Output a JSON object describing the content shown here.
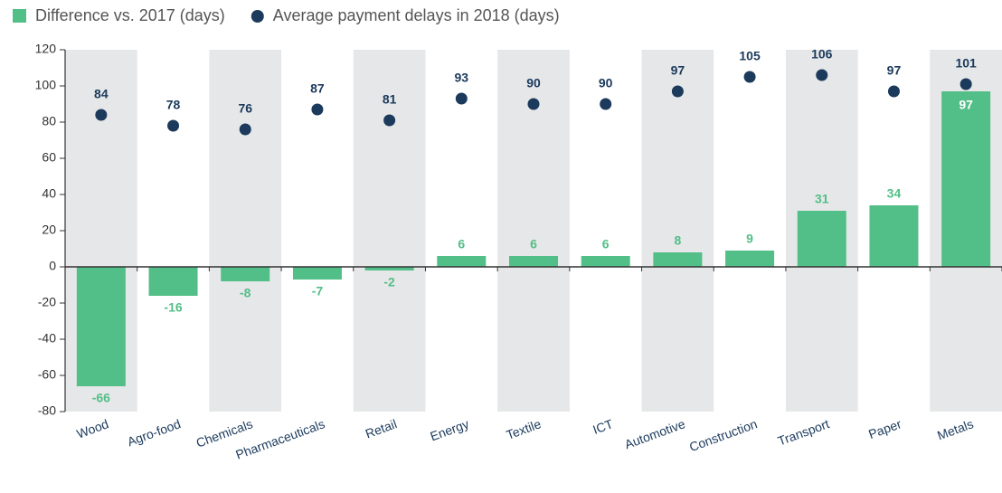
{
  "chart_data": {
    "type": "bar",
    "categories": [
      "Wood",
      "Agro-food",
      "Chemicals",
      "Pharmaceuticals",
      "Retail",
      "Energy",
      "Textile",
      "ICT",
      "Automotive",
      "Construction",
      "Transport",
      "Paper",
      "Metals"
    ],
    "series": [
      {
        "name": "Difference vs. 2017 (days)",
        "type": "bar",
        "color": "#52be88",
        "values": [
          -66,
          -16,
          -8,
          -7,
          -2,
          6,
          6,
          6,
          8,
          9,
          31,
          34,
          97
        ]
      },
      {
        "name": "Average payment delays in 2018 (days)",
        "type": "scatter",
        "color": "#1b3a5c",
        "values": [
          84,
          78,
          76,
          87,
          81,
          93,
          90,
          90,
          97,
          105,
          106,
          97,
          101
        ]
      }
    ],
    "ylim": [
      -80,
      120
    ],
    "yticks": [
      -80,
      -60,
      -40,
      -20,
      0,
      20,
      40,
      60,
      80,
      100,
      120
    ],
    "band_color": "#e6e7e8",
    "legend": "top"
  }
}
